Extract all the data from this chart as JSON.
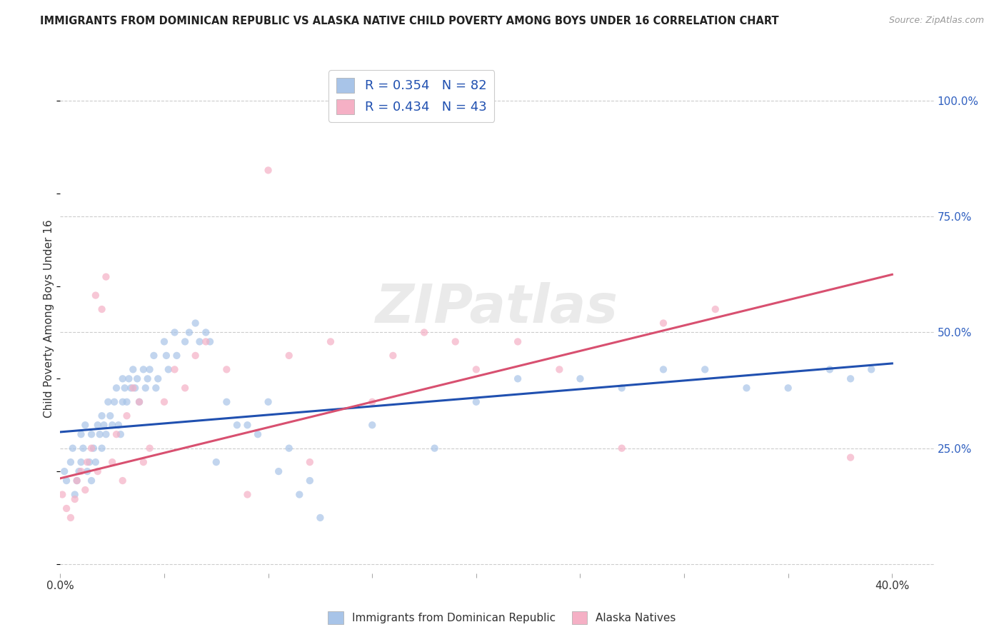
{
  "title": "IMMIGRANTS FROM DOMINICAN REPUBLIC VS ALASKA NATIVE CHILD POVERTY AMONG BOYS UNDER 16 CORRELATION CHART",
  "source": "Source: ZipAtlas.com",
  "ylabel": "Child Poverty Among Boys Under 16",
  "xlim": [
    0.0,
    0.42
  ],
  "ylim": [
    -0.02,
    1.08
  ],
  "xticks": [
    0.0,
    0.05,
    0.1,
    0.15,
    0.2,
    0.25,
    0.3,
    0.35,
    0.4
  ],
  "xticklabels": [
    "0.0%",
    "",
    "",
    "",
    "",
    "",
    "",
    "",
    "40.0%"
  ],
  "ytick_positions": [
    0.0,
    0.25,
    0.5,
    0.75,
    1.0
  ],
  "ytick_labels": [
    "",
    "25.0%",
    "50.0%",
    "75.0%",
    "100.0%"
  ],
  "blue_color": "#a8c4e8",
  "pink_color": "#f5b0c5",
  "blue_line_color": "#2050b0",
  "pink_line_color": "#d85070",
  "legend_blue_label": "R = 0.354   N = 82",
  "legend_pink_label": "R = 0.434   N = 43",
  "blue_intercept": 0.285,
  "blue_slope": 0.37,
  "pink_intercept": 0.185,
  "pink_slope": 1.1,
  "watermark": "ZIPatlas",
  "bg_color": "#ffffff",
  "grid_color": "#cccccc",
  "scatter_size": 55,
  "scatter_alpha": 0.7,
  "blue_x": [
    0.002,
    0.003,
    0.005,
    0.006,
    0.007,
    0.008,
    0.009,
    0.01,
    0.01,
    0.011,
    0.012,
    0.013,
    0.014,
    0.015,
    0.015,
    0.016,
    0.017,
    0.018,
    0.019,
    0.02,
    0.02,
    0.021,
    0.022,
    0.023,
    0.024,
    0.025,
    0.026,
    0.027,
    0.028,
    0.029,
    0.03,
    0.03,
    0.031,
    0.032,
    0.033,
    0.034,
    0.035,
    0.036,
    0.037,
    0.038,
    0.04,
    0.041,
    0.042,
    0.043,
    0.045,
    0.046,
    0.047,
    0.05,
    0.051,
    0.052,
    0.055,
    0.056,
    0.06,
    0.062,
    0.065,
    0.067,
    0.07,
    0.072,
    0.075,
    0.08,
    0.085,
    0.09,
    0.095,
    0.1,
    0.105,
    0.11,
    0.115,
    0.12,
    0.125,
    0.15,
    0.18,
    0.2,
    0.22,
    0.25,
    0.27,
    0.29,
    0.31,
    0.33,
    0.35,
    0.37,
    0.38,
    0.39
  ],
  "blue_y": [
    0.2,
    0.18,
    0.22,
    0.25,
    0.15,
    0.18,
    0.2,
    0.28,
    0.22,
    0.25,
    0.3,
    0.2,
    0.22,
    0.28,
    0.18,
    0.25,
    0.22,
    0.3,
    0.28,
    0.32,
    0.25,
    0.3,
    0.28,
    0.35,
    0.32,
    0.3,
    0.35,
    0.38,
    0.3,
    0.28,
    0.35,
    0.4,
    0.38,
    0.35,
    0.4,
    0.38,
    0.42,
    0.38,
    0.4,
    0.35,
    0.42,
    0.38,
    0.4,
    0.42,
    0.45,
    0.38,
    0.4,
    0.48,
    0.45,
    0.42,
    0.5,
    0.45,
    0.48,
    0.5,
    0.52,
    0.48,
    0.5,
    0.48,
    0.22,
    0.35,
    0.3,
    0.3,
    0.28,
    0.35,
    0.2,
    0.25,
    0.15,
    0.18,
    0.1,
    0.3,
    0.25,
    0.35,
    0.4,
    0.4,
    0.38,
    0.42,
    0.42,
    0.38,
    0.38,
    0.42,
    0.4,
    0.42
  ],
  "pink_x": [
    0.001,
    0.003,
    0.005,
    0.007,
    0.008,
    0.01,
    0.012,
    0.013,
    0.015,
    0.017,
    0.018,
    0.02,
    0.022,
    0.025,
    0.027,
    0.03,
    0.032,
    0.035,
    0.038,
    0.04,
    0.043,
    0.05,
    0.055,
    0.06,
    0.065,
    0.07,
    0.08,
    0.09,
    0.1,
    0.11,
    0.12,
    0.13,
    0.15,
    0.16,
    0.175,
    0.19,
    0.2,
    0.22,
    0.24,
    0.27,
    0.29,
    0.315,
    0.38
  ],
  "pink_y": [
    0.15,
    0.12,
    0.1,
    0.14,
    0.18,
    0.2,
    0.16,
    0.22,
    0.25,
    0.58,
    0.2,
    0.55,
    0.62,
    0.22,
    0.28,
    0.18,
    0.32,
    0.38,
    0.35,
    0.22,
    0.25,
    0.35,
    0.42,
    0.38,
    0.45,
    0.48,
    0.42,
    0.15,
    0.85,
    0.45,
    0.22,
    0.48,
    0.35,
    0.45,
    0.5,
    0.48,
    0.42,
    0.48,
    0.42,
    0.25,
    0.52,
    0.55,
    0.23
  ]
}
